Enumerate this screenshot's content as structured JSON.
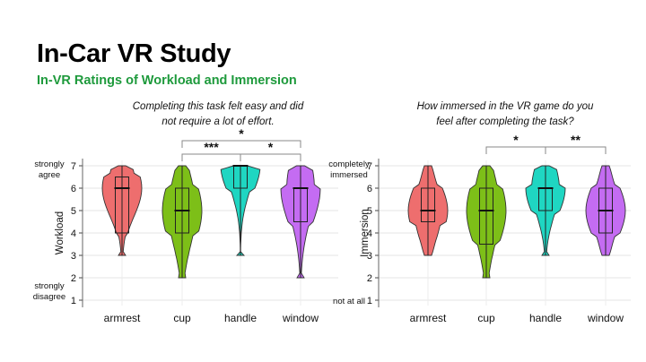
{
  "slide": {
    "title": "In-Car VR Study",
    "subtitle": "In-VR Ratings of Workload and Immersion"
  },
  "colors": {
    "armrest": "#ee6e6e",
    "cup": "#7dbf18",
    "handle": "#1fd6c2",
    "window": "#c46cf2",
    "subtitle": "#1e9a3c"
  },
  "chart_data": [
    {
      "type": "violin",
      "title_lines": [
        "Completing this task felt easy and did",
        "not require a lot of effort."
      ],
      "ylabel": "Workload",
      "ylim": [
        1,
        7
      ],
      "y_ticks": [
        "1",
        "2",
        "3",
        "4",
        "5",
        "6",
        "7"
      ],
      "y_top_label": [
        "strongly",
        "agree"
      ],
      "y_bottom_label": [
        "strongly",
        "disagree"
      ],
      "categories": [
        "armrest",
        "cup",
        "handle",
        "window"
      ],
      "series": [
        {
          "name": "armrest",
          "min": 3,
          "q1": 4,
          "median": 6,
          "q3": 6.5,
          "max": 7
        },
        {
          "name": "cup",
          "min": 2,
          "q1": 4,
          "median": 5,
          "q3": 6,
          "max": 7
        },
        {
          "name": "handle",
          "min": 3,
          "q1": 6,
          "median": 7,
          "q3": 7,
          "max": 7
        },
        {
          "name": "window",
          "min": 2,
          "q1": 4.5,
          "median": 6,
          "q3": 6,
          "max": 7
        }
      ],
      "significance": [
        {
          "from": "cup",
          "to": "handle",
          "stars": "***"
        },
        {
          "from": "handle",
          "to": "window",
          "stars": "*"
        },
        {
          "from": "cup",
          "to": "window",
          "stars": "*"
        }
      ]
    },
    {
      "type": "violin",
      "title_lines": [
        "How immersed in the VR game do you",
        "feel after completing the task?"
      ],
      "ylabel": "Immersion",
      "ylim": [
        1,
        7
      ],
      "y_ticks": [
        "1",
        "2",
        "3",
        "4",
        "5",
        "6",
        "7"
      ],
      "y_top_label": [
        "completely",
        "immersed"
      ],
      "y_bottom_label": [
        "not at all"
      ],
      "categories": [
        "armrest",
        "cup",
        "handle",
        "window"
      ],
      "series": [
        {
          "name": "armrest",
          "min": 3,
          "q1": 4.5,
          "median": 5,
          "q3": 6,
          "max": 7
        },
        {
          "name": "cup",
          "min": 2,
          "q1": 3.5,
          "median": 5,
          "q3": 6,
          "max": 7
        },
        {
          "name": "handle",
          "min": 3,
          "q1": 5,
          "median": 6,
          "q3": 6,
          "max": 7
        },
        {
          "name": "window",
          "min": 3,
          "q1": 4,
          "median": 5,
          "q3": 6,
          "max": 7
        }
      ],
      "significance": [
        {
          "from": "cup",
          "to": "handle",
          "stars": "*"
        },
        {
          "from": "handle",
          "to": "window",
          "stars": "**"
        }
      ]
    }
  ]
}
